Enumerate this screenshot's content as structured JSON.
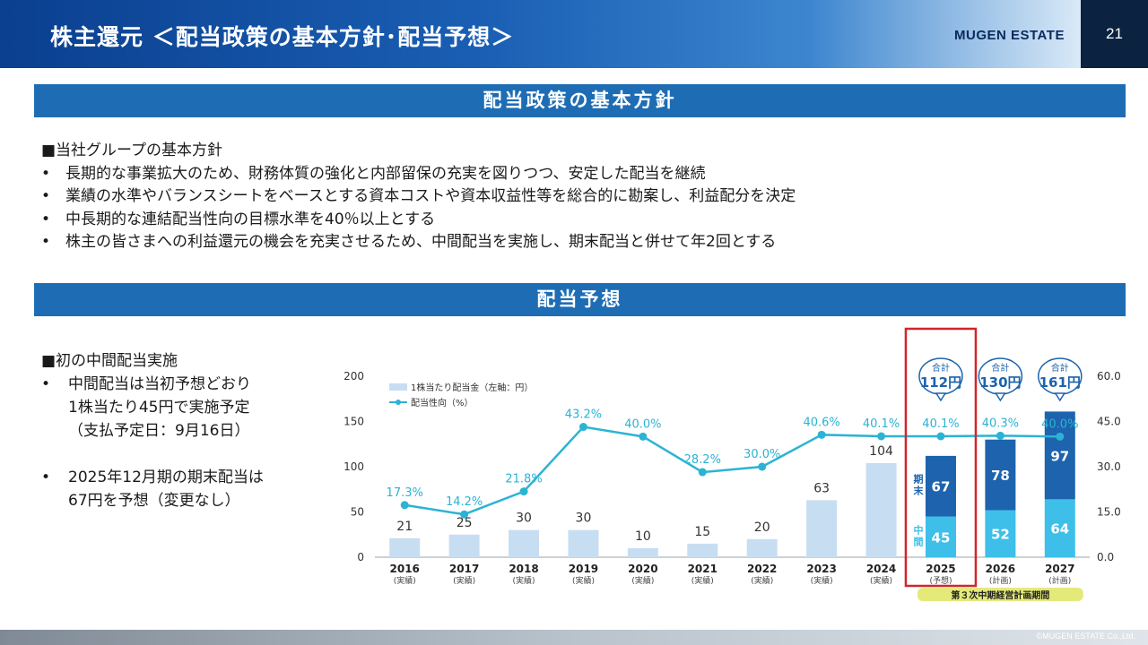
{
  "header": {
    "title": "株主還元 ＜配当政策の基本方針･配当予想＞",
    "brand": "MUGEN ESTATE",
    "page_number": "21"
  },
  "policy": {
    "band_title": "配当政策の基本方針",
    "heading": "■当社グループの基本方針",
    "bullet_marker": "•",
    "bullets": [
      "長期的な事業拡大のため、財務体質の強化と内部留保の充実を図りつつ、安定した配当を継続",
      "業績の水準やバランスシートをベースとする資本コストや資本収益性等を総合的に勘案し、利益配分を決定",
      "中長期的な連結配当性向の目標水準を40％以上とする",
      "株主の皆さまへの利益還元の機会を充実させるため、中間配当を実施し、期末配当と併せて年2回とする"
    ]
  },
  "forecast": {
    "band_title": "配当予想",
    "heading": "■初の中間配当実施",
    "bullet_marker": "•",
    "bullet1_line1": "中間配当は当初予想どおり",
    "bullet1_line2": "1株当たり45円で実施予定",
    "bullet1_line3": "（支払予定日：9月16日）",
    "bullet2_line1": "2025年12月期の期末配当は",
    "bullet2_line2": "67円を予想（変更なし）"
  },
  "chart_data": {
    "type": "bar",
    "categories": [
      "2016",
      "2017",
      "2018",
      "2019",
      "2020",
      "2021",
      "2022",
      "2023",
      "2024",
      "2025",
      "2026",
      "2027"
    ],
    "category_notes": [
      "(実績)",
      "(実績)",
      "(実績)",
      "(実績)",
      "(実績)",
      "(実績)",
      "(実績)",
      "(実績)",
      "(実績)",
      "(予想)",
      "(計画)",
      "(計画)"
    ],
    "series": [
      {
        "name": "1株当たり配当金（左軸：円）",
        "values": [
          21,
          25,
          30,
          30,
          10,
          15,
          20,
          63,
          104,
          null,
          null,
          null
        ]
      },
      {
        "name": "中間",
        "values": [
          null,
          null,
          null,
          null,
          null,
          null,
          null,
          null,
          null,
          45,
          52,
          64
        ]
      },
      {
        "name": "期末",
        "values": [
          null,
          null,
          null,
          null,
          null,
          null,
          null,
          null,
          null,
          67,
          78,
          97
        ]
      },
      {
        "name": "配当性向（%）",
        "axis": "right",
        "values": [
          17.3,
          14.2,
          21.8,
          43.2,
          40.0,
          28.2,
          30.0,
          40.6,
          40.1,
          40.1,
          40.3,
          40.0
        ]
      }
    ],
    "dividend_labels": [
      "21",
      "25",
      "30",
      "30",
      "10",
      "15",
      "20",
      "63",
      "104"
    ],
    "payout_labels": [
      "17.3%",
      "14.2%",
      "21.8%",
      "43.2%",
      "40.0%",
      "28.2%",
      "30.0%",
      "40.6%",
      "40.1%",
      "40.1%",
      "40.3%",
      "40.0%"
    ],
    "interim_labels": [
      "45",
      "52",
      "64"
    ],
    "yearend_labels": [
      "67",
      "78",
      "97"
    ],
    "totals": [
      {
        "label": "合計",
        "value": "112円"
      },
      {
        "label": "合計",
        "value": "130円"
      },
      {
        "label": "合計",
        "value": "161円"
      }
    ],
    "stack_label_interim": "中間",
    "stack_label_yearend": "期末",
    "ylim": [
      0,
      200
    ],
    "y_ticks": [
      "0",
      "50",
      "100",
      "150",
      "200"
    ],
    "y2lim": [
      0,
      60
    ],
    "y2_ticks": [
      "0.0",
      "15.0",
      "30.0",
      "45.0",
      "60.0"
    ],
    "legend": [
      "1株当たり配当金（左軸：円）",
      "配当性向（%）"
    ],
    "highlight_category": "2025",
    "period_label": "第３次中期経営計画期間",
    "colors": {
      "past": "#c7ddf2",
      "interim": "#3dbfe9",
      "yearend": "#1d63ad",
      "line": "#2bb3d4",
      "highlight": "#d0262b",
      "period_bg": "#e4ea7a"
    }
  },
  "footer": {
    "copyright": "©MUGEN ESTATE Co.,Ltd."
  }
}
